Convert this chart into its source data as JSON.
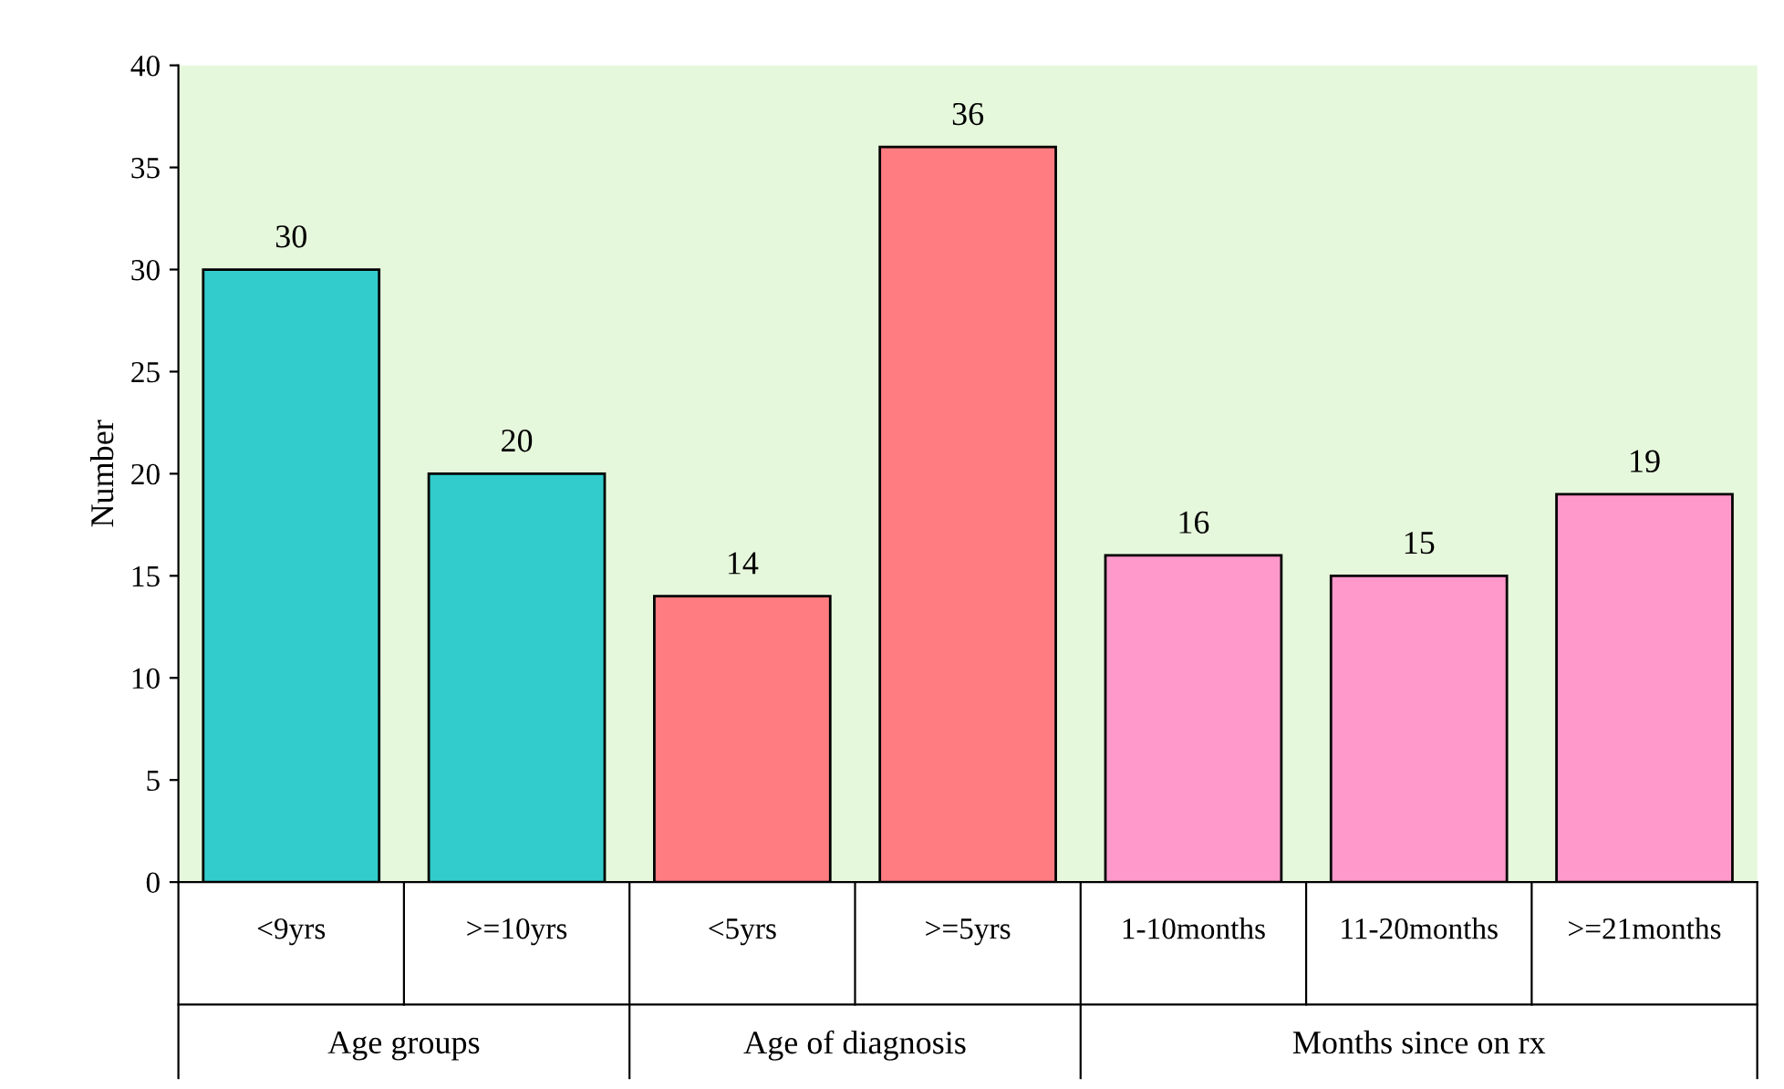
{
  "chart_data": {
    "type": "bar",
    "ylabel": "Number",
    "categories": [
      "<9yrs",
      ">=10yrs",
      "<5yrs",
      ">=5yrs",
      "1-10months",
      "11-20months",
      ">=21months"
    ],
    "series": [
      {
        "color": "#33cccc",
        "values": [
          30,
          20,
          null,
          null,
          null,
          null,
          null
        ]
      },
      {
        "color": "#ff7c80",
        "values": [
          null,
          null,
          14,
          36,
          null,
          null,
          null
        ]
      },
      {
        "color": "#ff99cc",
        "values": [
          null,
          null,
          null,
          null,
          16,
          15,
          19
        ]
      }
    ],
    "annotations": [
      "Age groups",
      "Age of diagnosis",
      "Months since on rx"
    ],
    "ylim": [
      0,
      40
    ],
    "yticks": [
      0,
      5,
      10,
      15,
      20,
      25,
      30,
      35,
      40
    ],
    "data_labels": true,
    "grid": false,
    "legend": false
  }
}
